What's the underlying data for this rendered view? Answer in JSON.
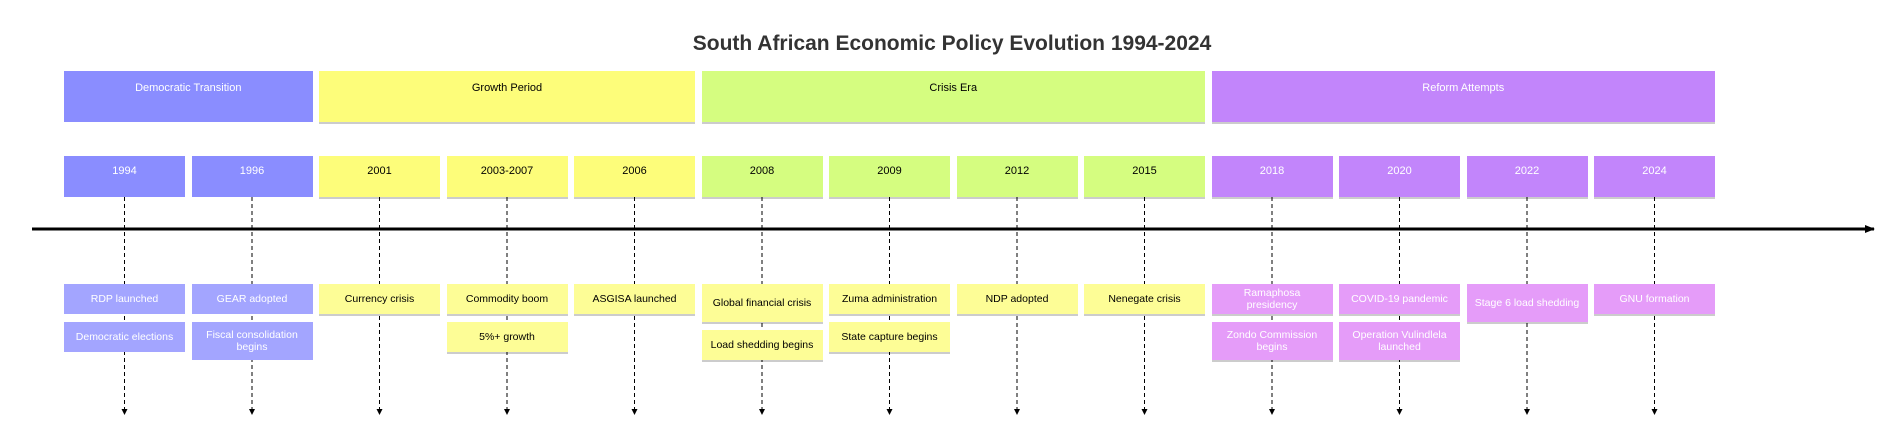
{
  "title": "South African Economic Policy Evolution 1994-2024",
  "colors": {
    "democratic": "#8a8dff",
    "democratic_event": "#a3a5ff",
    "growth": "#fdfd7a",
    "growth_event": "#fdfd96",
    "crisis": "#d5fd80",
    "crisis_event": "#fdfd96",
    "reform": "#c285fb",
    "reform_event": "#e59cf9"
  },
  "sections": [
    {
      "label": "Democratic Transition",
      "key": "democratic",
      "text_color": "#ffffff"
    },
    {
      "label": "Growth Period",
      "key": "growth",
      "text_color": "#000000"
    },
    {
      "label": "Crisis Era",
      "key": "crisis",
      "text_color": "#000000"
    },
    {
      "label": "Reform Attempts",
      "key": "reform",
      "text_color": "#ffffff"
    }
  ],
  "periods": [
    {
      "label": "1994",
      "section": "democratic",
      "events": [
        "RDP launched",
        "Democratic elections"
      ]
    },
    {
      "label": "1996",
      "section": "democratic",
      "events": [
        "GEAR adopted",
        "Fiscal consolidation begins"
      ]
    },
    {
      "label": "2001",
      "section": "growth",
      "events": [
        "Currency crisis"
      ]
    },
    {
      "label": "2003-2007",
      "section": "growth",
      "events": [
        "Commodity boom",
        "5%+ growth"
      ]
    },
    {
      "label": "2006",
      "section": "growth",
      "events": [
        "ASGISA launched"
      ]
    },
    {
      "label": "2008",
      "section": "crisis",
      "events": [
        "Global financial crisis",
        "Load shedding begins"
      ]
    },
    {
      "label": "2009",
      "section": "crisis",
      "events": [
        "Zuma administration",
        "State capture begins"
      ]
    },
    {
      "label": "2012",
      "section": "crisis",
      "events": [
        "NDP adopted"
      ]
    },
    {
      "label": "2015",
      "section": "crisis",
      "events": [
        "Nenegate crisis"
      ]
    },
    {
      "label": "2018",
      "section": "reform",
      "events": [
        "Ramaphosa presidency",
        "Zondo Commission begins"
      ]
    },
    {
      "label": "2020",
      "section": "reform",
      "events": [
        "COVID-19 pandemic",
        "Operation Vulindlela launched"
      ]
    },
    {
      "label": "2022",
      "section": "reform",
      "events": [
        "Stage 6 load shedding"
      ]
    },
    {
      "label": "2024",
      "section": "reform",
      "events": [
        "GNU formation"
      ]
    }
  ]
}
